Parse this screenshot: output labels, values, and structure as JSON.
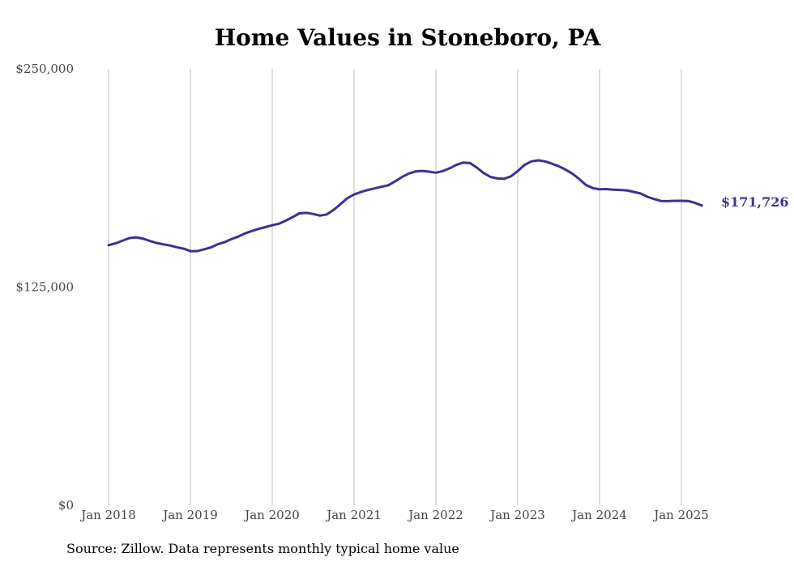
{
  "chart_data": {
    "type": "line",
    "title": "Home Values in Stoneboro, PA",
    "source": "Source: Zillow. Data represents monthly typical home value",
    "end_label": "$171,726",
    "ylim": [
      0,
      250000
    ],
    "y_ticks": [
      {
        "value": 0,
        "label": "$0"
      },
      {
        "value": 125000,
        "label": "$125,000"
      },
      {
        "value": 250000,
        "label": "$250,000"
      }
    ],
    "x_ticks": [
      "Jan 2018",
      "Jan 2019",
      "Jan 2020",
      "Jan 2021",
      "Jan 2022",
      "Jan 2023",
      "Jan 2024",
      "Jan 2025"
    ],
    "grid": "vertical",
    "colors": {
      "line": "#3b3192",
      "grid": "#bdbdbd"
    },
    "series": [
      {
        "values": [
          [
            2018.0,
            149000
          ],
          [
            2018.083,
            150000
          ],
          [
            2018.167,
            151500
          ],
          [
            2018.25,
            153000
          ],
          [
            2018.333,
            153500
          ],
          [
            2018.417,
            152800
          ],
          [
            2018.5,
            151500
          ],
          [
            2018.583,
            150300
          ],
          [
            2018.667,
            149500
          ],
          [
            2018.75,
            148800
          ],
          [
            2018.833,
            147800
          ],
          [
            2018.917,
            147000
          ],
          [
            2019.0,
            145600
          ],
          [
            2019.083,
            145600
          ],
          [
            2019.167,
            146600
          ],
          [
            2019.25,
            147700
          ],
          [
            2019.333,
            149500
          ],
          [
            2019.417,
            150700
          ],
          [
            2019.5,
            152400
          ],
          [
            2019.583,
            153900
          ],
          [
            2019.667,
            155700
          ],
          [
            2019.75,
            157100
          ],
          [
            2019.833,
            158300
          ],
          [
            2019.917,
            159300
          ],
          [
            2020.0,
            160400
          ],
          [
            2020.083,
            161300
          ],
          [
            2020.167,
            163100
          ],
          [
            2020.25,
            165100
          ],
          [
            2020.333,
            167200
          ],
          [
            2020.417,
            167500
          ],
          [
            2020.5,
            166900
          ],
          [
            2020.583,
            165900
          ],
          [
            2020.667,
            166600
          ],
          [
            2020.75,
            169200
          ],
          [
            2020.833,
            172400
          ],
          [
            2020.917,
            175900
          ],
          [
            2021.0,
            178000
          ],
          [
            2021.083,
            179400
          ],
          [
            2021.167,
            180600
          ],
          [
            2021.25,
            181500
          ],
          [
            2021.333,
            182400
          ],
          [
            2021.417,
            183300
          ],
          [
            2021.5,
            185500
          ],
          [
            2021.583,
            188000
          ],
          [
            2021.667,
            190000
          ],
          [
            2021.75,
            191200
          ],
          [
            2021.833,
            191500
          ],
          [
            2021.917,
            191100
          ],
          [
            2022.0,
            190500
          ],
          [
            2022.083,
            191400
          ],
          [
            2022.167,
            193000
          ],
          [
            2022.25,
            195000
          ],
          [
            2022.333,
            196300
          ],
          [
            2022.417,
            196000
          ],
          [
            2022.5,
            193400
          ],
          [
            2022.583,
            190300
          ],
          [
            2022.667,
            188100
          ],
          [
            2022.75,
            187200
          ],
          [
            2022.833,
            187000
          ],
          [
            2022.917,
            188400
          ],
          [
            2023.0,
            191400
          ],
          [
            2023.083,
            195000
          ],
          [
            2023.167,
            197000
          ],
          [
            2023.25,
            197600
          ],
          [
            2023.333,
            197000
          ],
          [
            2023.417,
            195700
          ],
          [
            2023.5,
            194200
          ],
          [
            2023.583,
            192300
          ],
          [
            2023.667,
            190000
          ],
          [
            2023.75,
            186900
          ],
          [
            2023.833,
            183500
          ],
          [
            2023.917,
            181700
          ],
          [
            2024.0,
            181000
          ],
          [
            2024.083,
            181100
          ],
          [
            2024.167,
            180800
          ],
          [
            2024.25,
            180600
          ],
          [
            2024.333,
            180400
          ],
          [
            2024.417,
            179500
          ],
          [
            2024.5,
            178600
          ],
          [
            2024.583,
            176700
          ],
          [
            2024.667,
            175400
          ],
          [
            2024.75,
            174300
          ],
          [
            2024.833,
            174200
          ],
          [
            2024.917,
            174400
          ],
          [
            2025.0,
            174400
          ],
          [
            2025.083,
            174300
          ],
          [
            2025.167,
            173200
          ],
          [
            2025.25,
            171726
          ]
        ]
      }
    ]
  }
}
